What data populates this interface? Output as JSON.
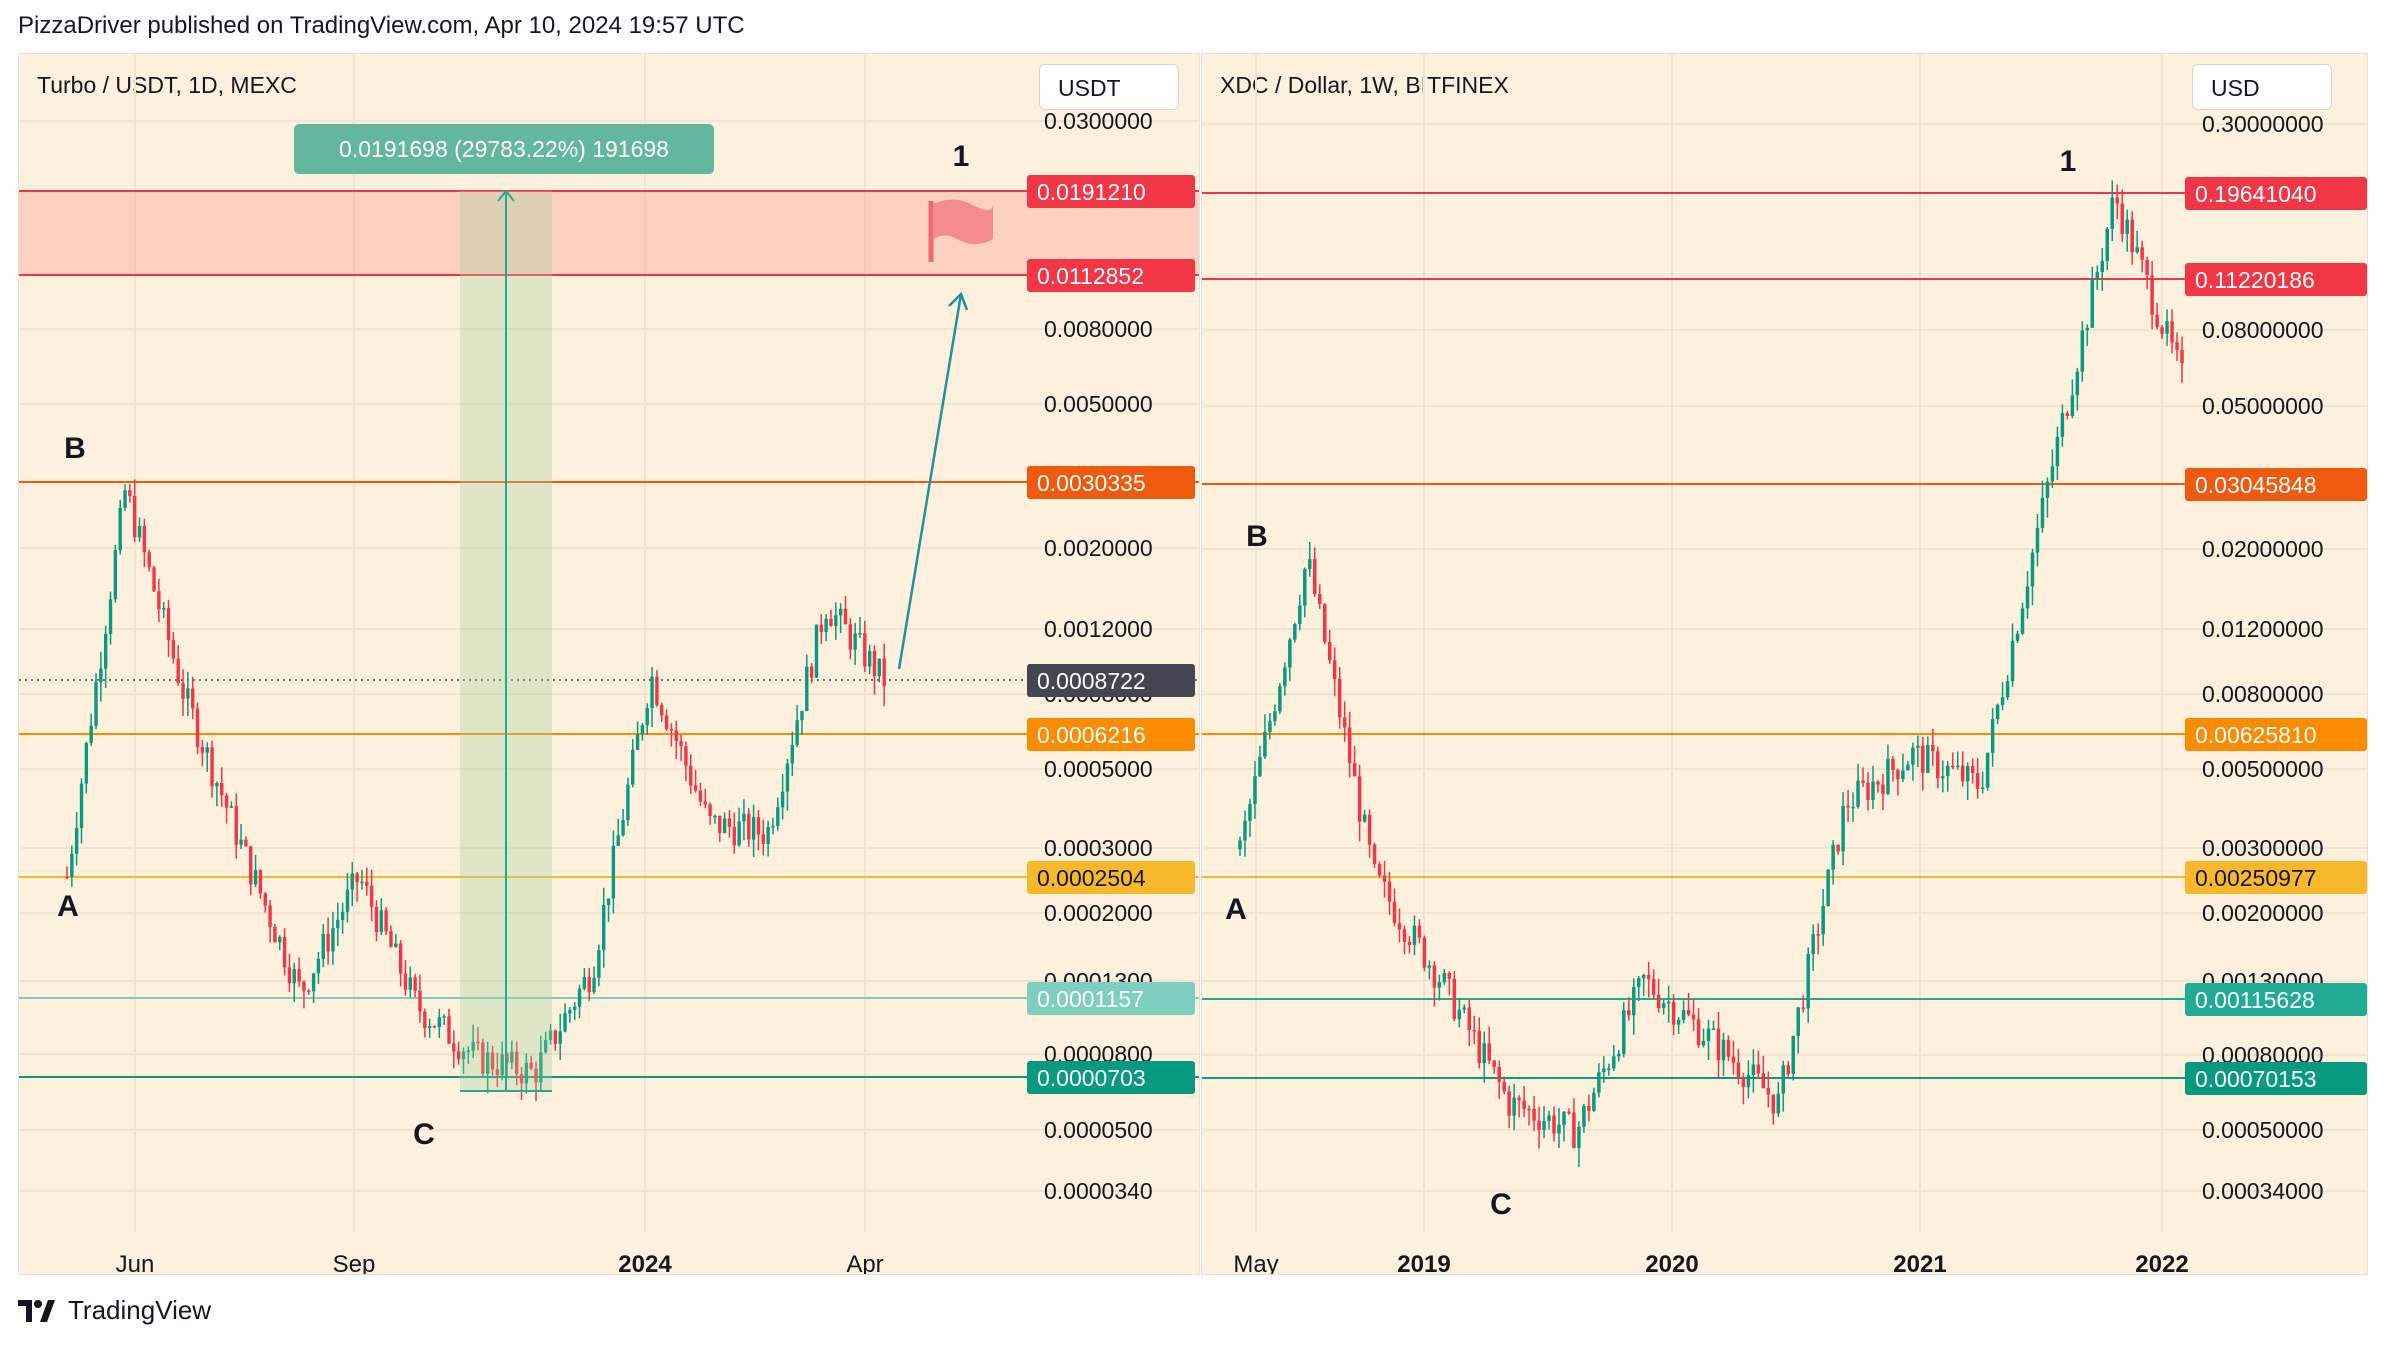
{
  "header": "PizzaDriver published on TradingView.com, Apr 10, 2024 19:57 UTC",
  "footer": "TradingView",
  "left": {
    "title": "Turbo / USDT, 1D, MEXC",
    "unit": "USDT",
    "measure": "0.0191698 (29783.22%) 191698",
    "axis_ticks": [
      "0.0300000",
      "0.0080000",
      "0.0050000",
      "0.0020000",
      "0.0012000",
      "0.0008000",
      "0.0005000",
      "0.0003000",
      "0.0002000",
      "0.0001300",
      "0.0000800",
      "0.0000500",
      "0.0000340"
    ],
    "x_labels": [
      "Jun",
      "Sep",
      "2024",
      "Apr"
    ],
    "tags": [
      {
        "value": "0.0191210",
        "color": "#f23645"
      },
      {
        "value": "0.0112852",
        "color": "#f23645"
      },
      {
        "value": "0.0030335",
        "color": "#f05a0e"
      },
      {
        "value": "0.0008722",
        "color": "#434651"
      },
      {
        "value": "0.0006216",
        "color": "#fb8c00"
      },
      {
        "value": "0.0002504",
        "color": "#f7b92b"
      },
      {
        "value": "0.0001157",
        "color": "#7ecfc0"
      },
      {
        "value": "0.0000703",
        "color": "#089981"
      }
    ],
    "points": [
      "A",
      "B",
      "C",
      "1"
    ]
  },
  "right": {
    "title": "XDC / Dollar, 1W, BITFINEX",
    "unit": "USD",
    "axis_ticks": [
      "0.30000000",
      "0.08000000",
      "0.05000000",
      "0.02000000",
      "0.01200000",
      "0.00800000",
      "0.00500000",
      "0.00300000",
      "0.00200000",
      "0.00130000",
      "0.00080000",
      "0.00050000",
      "0.00034000"
    ],
    "x_labels": [
      "May",
      "2019",
      "2020",
      "2021",
      "2022"
    ],
    "tags": [
      {
        "value": "0.19641040",
        "color": "#f23645"
      },
      {
        "value": "0.11220186",
        "color": "#f23645"
      },
      {
        "value": "0.03045848",
        "color": "#f05a0e"
      },
      {
        "value": "0.00625810",
        "color": "#fb8c00"
      },
      {
        "value": "0.00250977",
        "color": "#f7b92b"
      },
      {
        "value": "0.00115628",
        "color": "#22ab94"
      },
      {
        "value": "0.00070153",
        "color": "#089981"
      }
    ],
    "points": [
      "A",
      "B",
      "C",
      "1"
    ]
  },
  "chart_data": [
    {
      "type": "candlestick",
      "title": "Turbo / USDT, 1D, MEXC",
      "scale": "log",
      "horizontal_levels": [
        0.019121,
        0.0112852,
        0.0030335,
        0.0006216,
        0.0002504,
        0.0001157,
        7.03e-05
      ],
      "last_price": 0.0008722,
      "measure_gain": "0.0191698 (29783.22%) 191698",
      "approx_path": [
        {
          "x": "May",
          "y": 0.00025
        },
        {
          "x": "May",
          "y": 0.0029
        },
        {
          "x": "May",
          "y": 0.0008
        },
        {
          "x": "Jun",
          "y": 0.0003
        },
        {
          "x": "Jun",
          "y": 0.00012
        },
        {
          "x": "Jul",
          "y": 0.00025
        },
        {
          "x": "Aug",
          "y": 0.00011
        },
        {
          "x": "Sep",
          "y": 8e-05
        },
        {
          "x": "Oct",
          "y": 7.2e-05
        },
        {
          "x": "Nov",
          "y": 0.00014
        },
        {
          "x": "Dec",
          "y": 0.0009
        },
        {
          "x": "Jan",
          "y": 0.00035
        },
        {
          "x": "Feb",
          "y": 0.00033
        },
        {
          "x": "Mar",
          "y": 0.0014
        },
        {
          "x": "Apr",
          "y": 0.00087
        }
      ]
    },
    {
      "type": "candlestick",
      "title": "XDC / Dollar, 1W, BITFINEX",
      "scale": "log",
      "horizontal_levels": [
        0.1964104,
        0.11220186,
        0.03045848,
        0.0062581,
        0.00250977,
        0.00115628,
        0.00070153
      ],
      "approx_path": [
        {
          "x": "2018-05",
          "y": 0.003
        },
        {
          "x": "2018-05",
          "y": 0.019
        },
        {
          "x": "2018-07",
          "y": 0.0025
        },
        {
          "x": "2018-10",
          "y": 0.0013
        },
        {
          "x": "2019-01",
          "y": 0.0006
        },
        {
          "x": "2019-07",
          "y": 0.0005
        },
        {
          "x": "2019-10",
          "y": 0.0013
        },
        {
          "x": "2020-01",
          "y": 0.0009
        },
        {
          "x": "2020-04",
          "y": 0.0006
        },
        {
          "x": "2020-07",
          "y": 0.004
        },
        {
          "x": "2020-10",
          "y": 0.0055
        },
        {
          "x": "2021-01",
          "y": 0.0045
        },
        {
          "x": "2021-03",
          "y": 0.03
        },
        {
          "x": "2021-08",
          "y": 0.19
        },
        {
          "x": "2022-01",
          "y": 0.06
        }
      ]
    }
  ]
}
